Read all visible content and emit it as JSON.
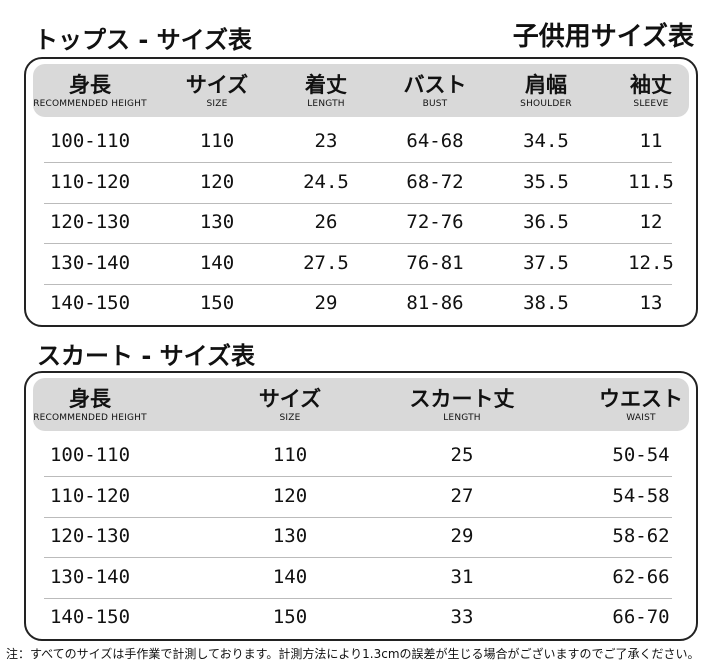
{
  "header": {
    "title": "トップス - サイズ表",
    "subtitle": "子供用サイズ表"
  },
  "tops": {
    "columns": [
      {
        "label": "身長",
        "sub": "RECOMMENDED HEIGHT"
      },
      {
        "label": "サイズ",
        "sub": "SIZE"
      },
      {
        "label": "着丈",
        "sub": "LENGTH"
      },
      {
        "label": "バスト",
        "sub": "BUST"
      },
      {
        "label": "肩幅",
        "sub": "SHOULDER"
      },
      {
        "label": "袖丈",
        "sub": "SLEEVE"
      }
    ],
    "rows": [
      [
        "100-110",
        "110",
        "23",
        "64-68",
        "34.5",
        "11"
      ],
      [
        "110-120",
        "120",
        "24.5",
        "68-72",
        "35.5",
        "11.5"
      ],
      [
        "120-130",
        "130",
        "26",
        "72-76",
        "36.5",
        "12"
      ],
      [
        "130-140",
        "140",
        "27.5",
        "76-81",
        "37.5",
        "12.5"
      ],
      [
        "140-150",
        "150",
        "29",
        "81-86",
        "38.5",
        "13"
      ]
    ]
  },
  "skirt": {
    "title": "スカート - サイズ表",
    "columns": [
      {
        "label": "身長",
        "sub": "RECOMMENDED HEIGHT"
      },
      {
        "label": "サイズ",
        "sub": "SIZE"
      },
      {
        "label": "スカート丈",
        "sub": "LENGTH"
      },
      {
        "label": "ウエスト",
        "sub": "WAIST"
      }
    ],
    "rows": [
      [
        "100-110",
        "110",
        "25",
        "50-54"
      ],
      [
        "110-120",
        "120",
        "27",
        "54-58"
      ],
      [
        "120-130",
        "130",
        "29",
        "58-62"
      ],
      [
        "130-140",
        "140",
        "31",
        "62-66"
      ],
      [
        "140-150",
        "150",
        "33",
        "66-70"
      ]
    ]
  },
  "note": "注：すべてのサイズは手作業で計測しております。計測方法により1.3cmの誤差が生じる場合がございますのでご了承ください。"
}
